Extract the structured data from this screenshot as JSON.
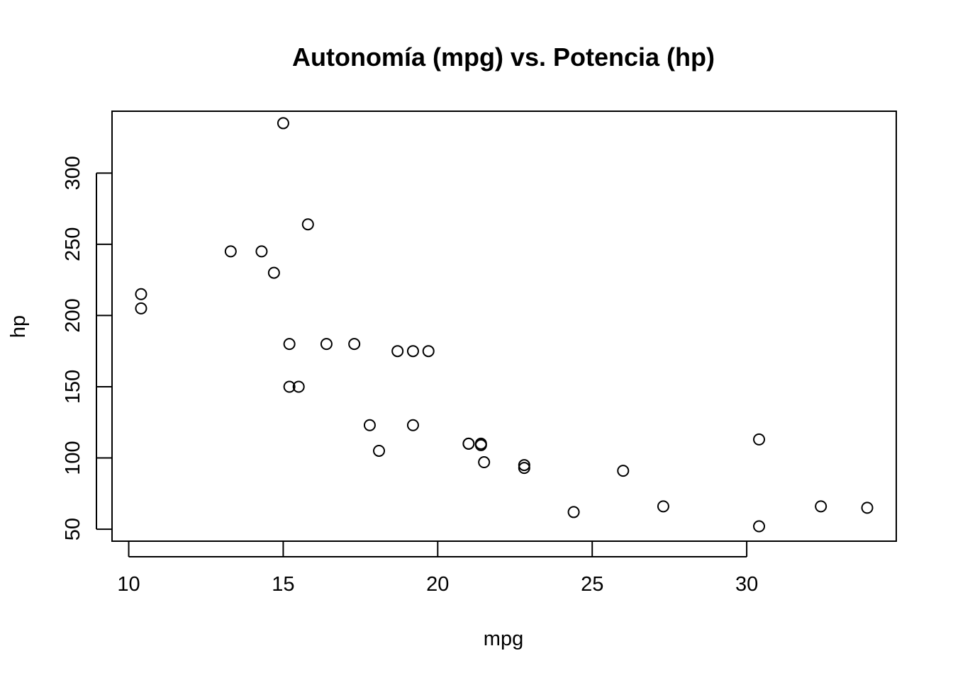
{
  "chart_data": {
    "type": "scatter",
    "title": "Autonomía (mpg) vs. Potencia (hp)",
    "xlabel": "mpg",
    "ylabel": "hp",
    "xlim": [
      9.46,
      34.84
    ],
    "ylim": [
      41.58,
      343.42
    ],
    "xticks": [
      10,
      15,
      20,
      25,
      30
    ],
    "yticks": [
      50,
      100,
      150,
      200,
      250,
      300
    ],
    "grid": false,
    "legend": "none",
    "marker": "open-circle",
    "color": "#000000",
    "points": [
      {
        "x": 21.0,
        "y": 110
      },
      {
        "x": 21.0,
        "y": 110
      },
      {
        "x": 22.8,
        "y": 93
      },
      {
        "x": 21.4,
        "y": 110
      },
      {
        "x": 18.7,
        "y": 175
      },
      {
        "x": 18.1,
        "y": 105
      },
      {
        "x": 14.3,
        "y": 245
      },
      {
        "x": 24.4,
        "y": 62
      },
      {
        "x": 22.8,
        "y": 95
      },
      {
        "x": 19.2,
        "y": 123
      },
      {
        "x": 17.8,
        "y": 123
      },
      {
        "x": 16.4,
        "y": 180
      },
      {
        "x": 17.3,
        "y": 180
      },
      {
        "x": 15.2,
        "y": 180
      },
      {
        "x": 10.4,
        "y": 205
      },
      {
        "x": 10.4,
        "y": 215
      },
      {
        "x": 14.7,
        "y": 230
      },
      {
        "x": 32.4,
        "y": 66
      },
      {
        "x": 30.4,
        "y": 52
      },
      {
        "x": 33.9,
        "y": 65
      },
      {
        "x": 21.5,
        "y": 97
      },
      {
        "x": 15.5,
        "y": 150
      },
      {
        "x": 15.2,
        "y": 150
      },
      {
        "x": 13.3,
        "y": 245
      },
      {
        "x": 19.2,
        "y": 175
      },
      {
        "x": 27.3,
        "y": 66
      },
      {
        "x": 26.0,
        "y": 91
      },
      {
        "x": 30.4,
        "y": 113
      },
      {
        "x": 15.8,
        "y": 264
      },
      {
        "x": 19.7,
        "y": 175
      },
      {
        "x": 15.0,
        "y": 335
      },
      {
        "x": 21.4,
        "y": 109
      }
    ]
  }
}
